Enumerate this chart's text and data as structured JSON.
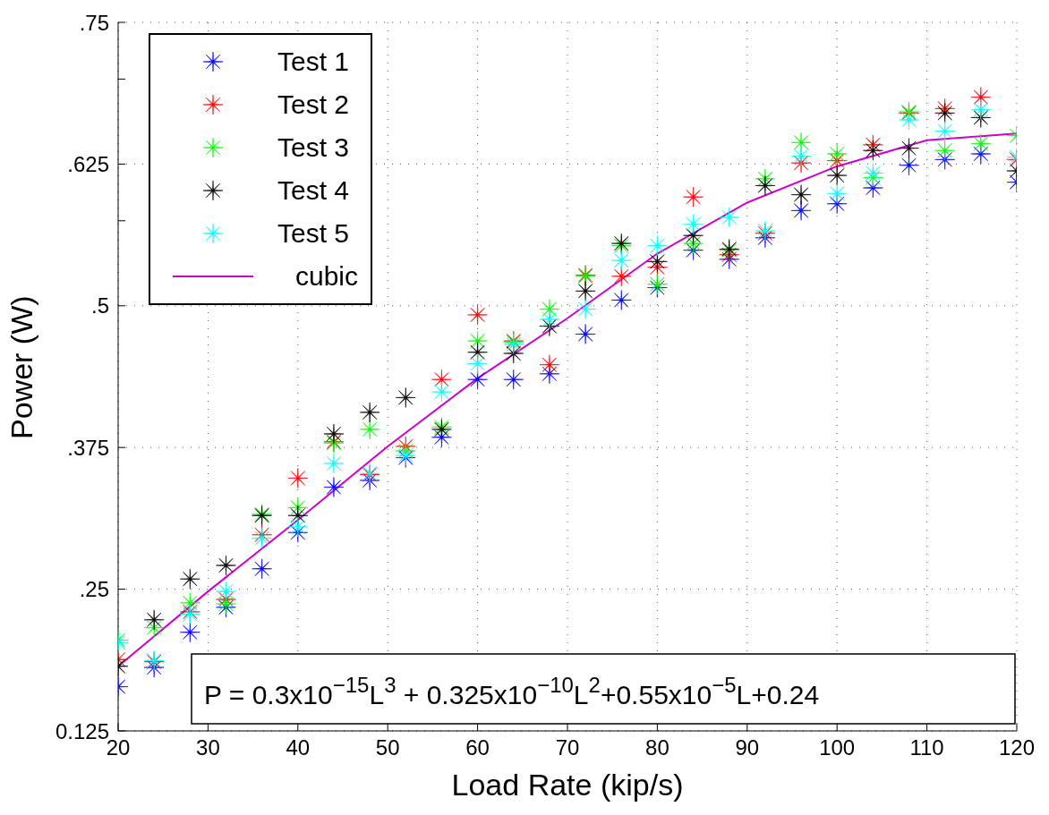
{
  "chart_data": {
    "type": "scatter",
    "xlabel": "Load Rate (kip/s)",
    "ylabel": "Power (W)",
    "x": [
      20,
      24,
      28,
      32,
      36,
      40,
      44,
      48,
      52,
      56,
      60,
      64,
      68,
      72,
      76,
      80,
      84,
      88,
      92,
      96,
      100,
      104,
      108,
      112,
      116,
      120
    ],
    "xlim": [
      20,
      120
    ],
    "xticks": [
      20,
      30,
      40,
      50,
      60,
      70,
      80,
      90,
      100,
      110,
      120
    ],
    "ylim": [
      0.125,
      0.75
    ],
    "yticks": [
      {
        "value": 0.125,
        "label": "0.125"
      },
      {
        "value": 0.25,
        "label": ".25"
      },
      {
        "value": 0.375,
        "label": ".375"
      },
      {
        "value": 0.5,
        "label": ".5"
      },
      {
        "value": 0.575,
        "label": null
      },
      {
        "value": 0.625,
        "label": ".625"
      },
      {
        "value": 0.7,
        "label": null
      },
      {
        "value": 0.75,
        "label": ".75"
      }
    ],
    "grid": true,
    "legend": "top left",
    "marker": "star",
    "series": [
      {
        "name": "Test 1",
        "color": "#0000ff",
        "values": [
          0.164,
          0.181,
          0.212,
          0.234,
          0.268,
          0.3,
          0.34,
          0.346,
          0.366,
          0.384,
          0.435,
          0.435,
          0.44,
          0.475,
          0.505,
          0.516,
          0.549,
          0.541,
          0.56,
          0.584,
          0.59,
          0.604,
          0.624,
          0.629,
          0.634,
          0.609
        ]
      },
      {
        "name": "Test 2",
        "color": "#ff0000",
        "values": [
          0.188,
          0.186,
          0.23,
          0.241,
          0.298,
          0.348,
          0.38,
          0.351,
          0.376,
          0.435,
          0.492,
          0.469,
          0.448,
          0.527,
          0.526,
          0.534,
          0.596,
          0.545,
          0.564,
          0.626,
          0.628,
          0.642,
          0.67,
          0.674,
          0.684,
          0.629
        ]
      },
      {
        "name": "Test 3",
        "color": "#00ff00",
        "values": [
          0.205,
          0.216,
          0.238,
          0.237,
          0.316,
          0.322,
          0.379,
          0.391,
          0.372,
          0.393,
          0.469,
          0.468,
          0.497,
          0.526,
          0.553,
          0.519,
          0.555,
          0.549,
          0.612,
          0.644,
          0.634,
          0.613,
          0.671,
          0.637,
          0.643,
          0.65
        ]
      },
      {
        "name": "Test 4",
        "color": "#000000",
        "values": [
          0.182,
          0.223,
          0.259,
          0.271,
          0.315,
          0.315,
          0.387,
          0.406,
          0.419,
          0.391,
          0.459,
          0.458,
          0.482,
          0.513,
          0.555,
          0.539,
          0.562,
          0.55,
          0.606,
          0.598,
          0.615,
          0.637,
          0.639,
          0.67,
          0.666,
          0.619
        ]
      },
      {
        "name": "Test 5",
        "color": "#00ffff",
        "values": [
          0.203,
          0.187,
          0.228,
          0.248,
          0.295,
          0.305,
          0.361,
          0.352,
          0.368,
          0.424,
          0.449,
          0.466,
          0.488,
          0.497,
          0.54,
          0.553,
          0.572,
          0.578,
          0.566,
          0.632,
          0.599,
          0.617,
          0.664,
          0.654,
          0.673,
          0.631
        ]
      },
      {
        "name": "cubic",
        "type": "line",
        "marker": "none",
        "color": "#cc00cc",
        "x": [
          20,
          30,
          40,
          50,
          60,
          70,
          80,
          90,
          100,
          110,
          120
        ],
        "values": [
          0.182,
          0.248,
          0.311,
          0.376,
          0.436,
          0.489,
          0.546,
          0.591,
          0.623,
          0.646,
          0.652
        ]
      }
    ],
    "annotations": [
      "P = 0.3x10$^{−15}$L$^{3}$ + 0.325x10$^{−10}$L$^{2}$+0.55x10$^{−5}$L+0.24"
    ]
  }
}
